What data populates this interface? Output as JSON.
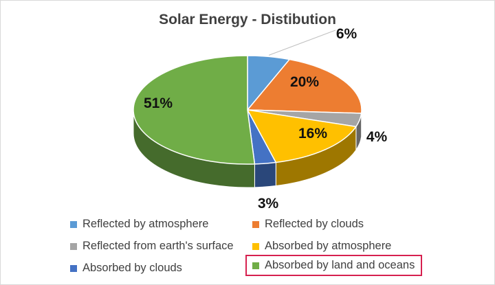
{
  "chart_data": {
    "type": "pie",
    "title": "Solar Energy - Distibution",
    "style": "3d",
    "slices": [
      {
        "label": "Reflected by atmosphere",
        "value": 6,
        "value_label": "6%",
        "color": "#5b9bd5"
      },
      {
        "label": "Reflected by clouds",
        "value": 20,
        "value_label": "20%",
        "color": "#ed7d31"
      },
      {
        "label": "Reflected from earth's surface",
        "value": 4,
        "value_label": "4%",
        "color": "#a5a5a5"
      },
      {
        "label": "Absorbed by atmosphere",
        "value": 16,
        "value_label": "16%",
        "color": "#ffc000"
      },
      {
        "label": "Absorbed by clouds",
        "value": 3,
        "value_label": "3%",
        "color": "#4472c4"
      },
      {
        "label": "Absorbed by land and oceans",
        "value": 51,
        "value_label": "51%",
        "color": "#70ad47"
      }
    ],
    "legend_position": "bottom",
    "highlighted_legend_entry": "Absorbed by land and oceans",
    "highlight_color": "#d6204f"
  }
}
